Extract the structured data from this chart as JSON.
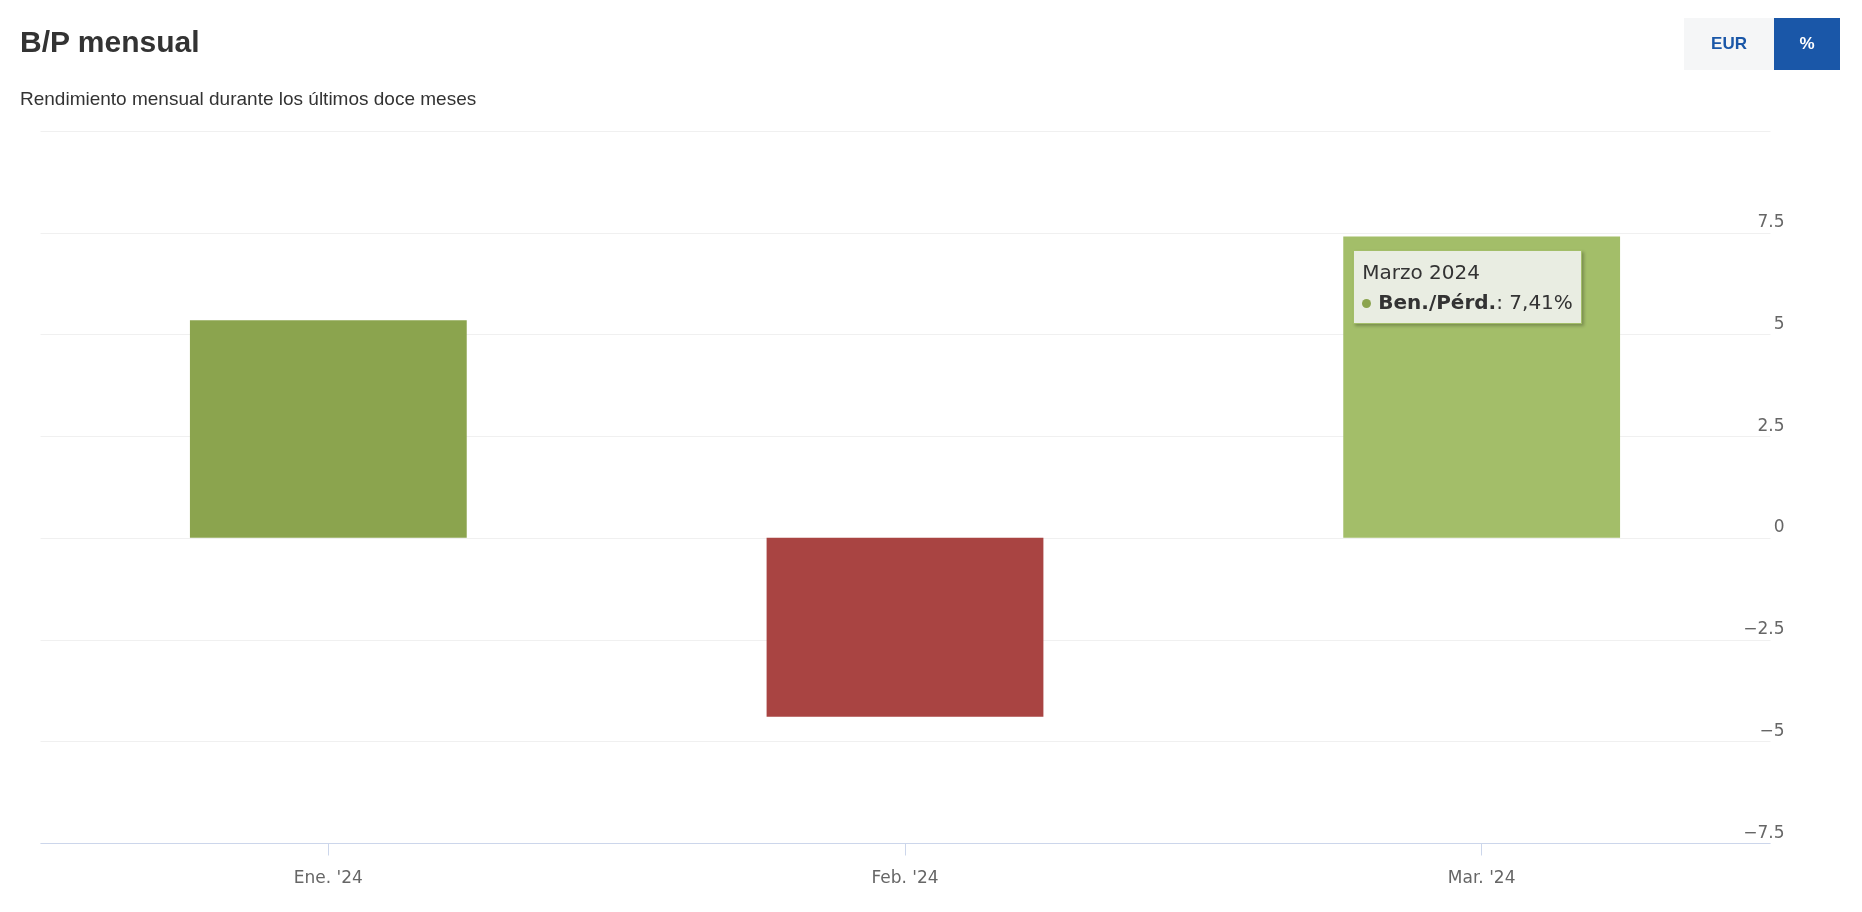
{
  "chart_data": {
    "type": "bar",
    "title": "B/P mensual",
    "subtitle": "Rendimiento mensual durante los últimos doce meses",
    "categories": [
      "Ene. '24",
      "Feb. '24",
      "Mar. '24"
    ],
    "values": [
      5.35,
      -4.4,
      7.41
    ],
    "colors": [
      "#8ba44e",
      "#a94442",
      "#a3be69"
    ],
    "ylim": [
      -7.5,
      10
    ],
    "yticks": [
      -7.5,
      -5,
      -2.5,
      0,
      2.5,
      5,
      7.5,
      {
        "value": 10,
        "label": null
      }
    ],
    "grid": "y",
    "annotations": [
      "EUR",
      "%",
      {
        "text": "Marzo 2024\nBen./Pérd.: 7,41%",
        "x": "Mar. '24",
        "y": 7.41
      }
    ]
  }
}
